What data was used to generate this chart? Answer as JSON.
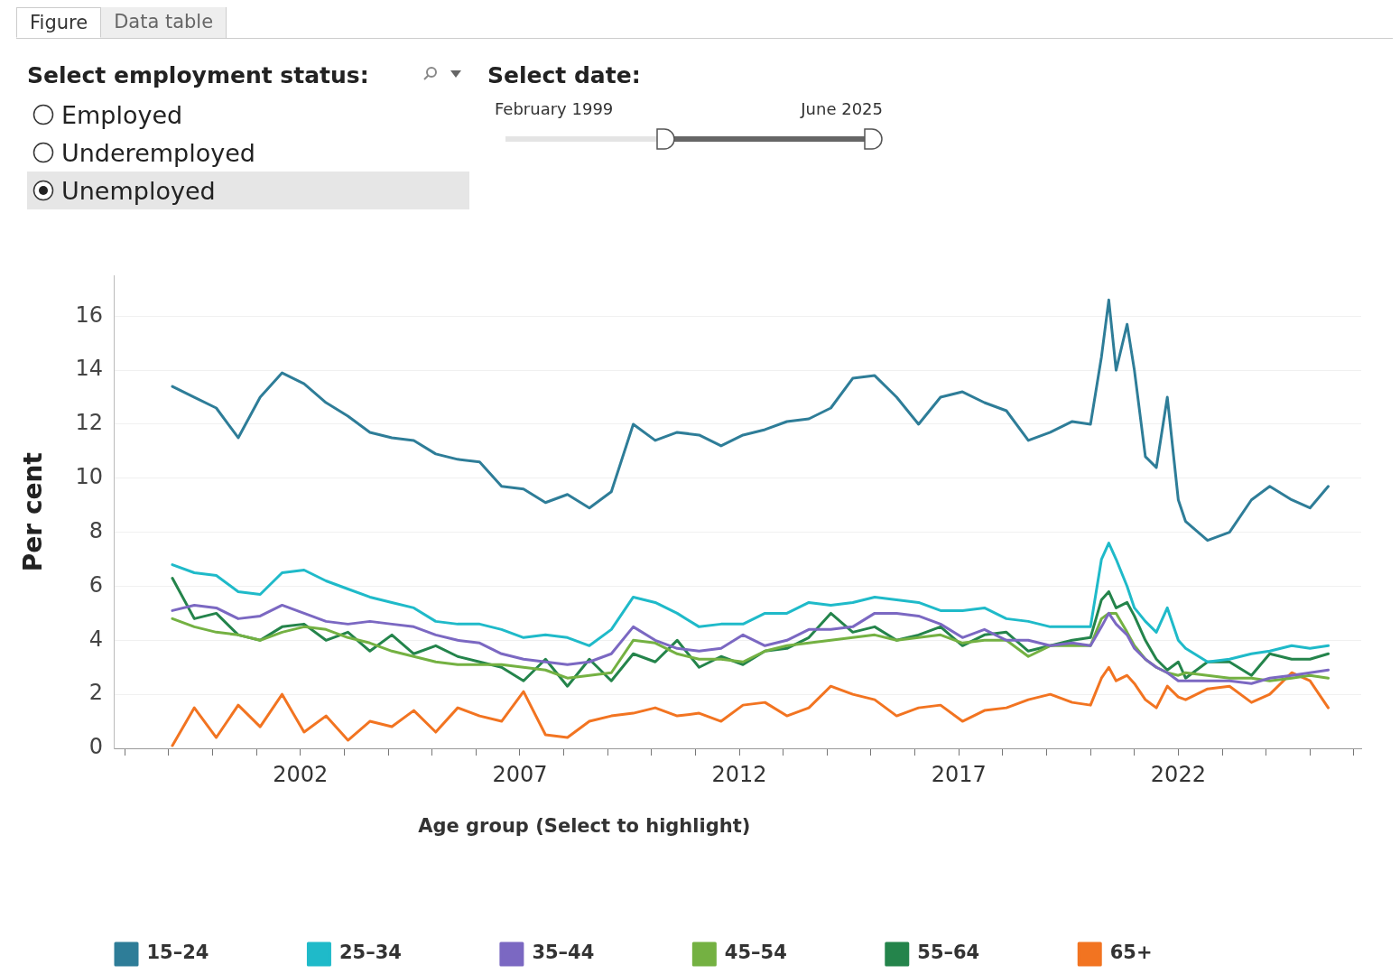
{
  "chart_data": {
    "type": "line",
    "ylabel": "Per cent",
    "legend_title": "Age group (Select to highlight)",
    "legend": "bottom",
    "grid": "y",
    "marker": "none",
    "line_style": "solid",
    "annotations": [
      "Figure",
      "Data table",
      "Select employment status:",
      "Employed",
      "Underemployed",
      "Unemployed",
      "Select date:",
      "February 1999",
      "June 2025"
    ],
    "xlim": [
      "1997-10",
      "2026-03"
    ],
    "ylim": [
      0,
      17.5
    ],
    "yticks": [
      0,
      2,
      4,
      6,
      8,
      10,
      12,
      14,
      16
    ],
    "xticks": [
      {
        "value": "1998",
        "label": null
      },
      {
        "value": "1999",
        "label": null
      },
      {
        "value": "2000",
        "label": null
      },
      {
        "value": "2001",
        "label": null
      },
      {
        "value": "2002",
        "label": "2002"
      },
      {
        "value": "2003",
        "label": null
      },
      {
        "value": "2004",
        "label": null
      },
      {
        "value": "2005",
        "label": null
      },
      {
        "value": "2006",
        "label": null
      },
      {
        "value": "2007",
        "label": "2007"
      },
      {
        "value": "2008",
        "label": null
      },
      {
        "value": "2009",
        "label": null
      },
      {
        "value": "2010",
        "label": null
      },
      {
        "value": "2011",
        "label": null
      },
      {
        "value": "2012",
        "label": "2012"
      },
      {
        "value": "2013",
        "label": null
      },
      {
        "value": "2014",
        "label": null
      },
      {
        "value": "2015",
        "label": null
      },
      {
        "value": "2016",
        "label": null
      },
      {
        "value": "2017",
        "label": "2017"
      },
      {
        "value": "2018",
        "label": null
      },
      {
        "value": "2019",
        "label": null
      },
      {
        "value": "2020",
        "label": null
      },
      {
        "value": "2021",
        "label": null
      },
      {
        "value": "2022",
        "label": "2022"
      },
      {
        "value": "2023",
        "label": null
      },
      {
        "value": "2024",
        "label": null
      },
      {
        "value": "2025",
        "label": null
      },
      {
        "value": "2026",
        "label": null
      }
    ],
    "x": [
      "1999-02",
      "1999-08",
      "2000-02",
      "2000-08",
      "2001-02",
      "2001-08",
      "2002-02",
      "2002-08",
      "2003-02",
      "2003-08",
      "2004-02",
      "2004-08",
      "2005-02",
      "2005-08",
      "2006-02",
      "2006-08",
      "2007-02",
      "2007-08",
      "2008-02",
      "2008-08",
      "2009-02",
      "2009-08",
      "2010-02",
      "2010-08",
      "2011-02",
      "2011-08",
      "2012-02",
      "2012-08",
      "2013-02",
      "2013-08",
      "2014-02",
      "2014-08",
      "2015-02",
      "2015-08",
      "2016-02",
      "2016-08",
      "2017-02",
      "2017-08",
      "2018-02",
      "2018-08",
      "2019-02",
      "2019-08",
      "2020-01",
      "2020-04",
      "2020-06",
      "2020-08",
      "2020-11",
      "2021-01",
      "2021-04",
      "2021-07",
      "2021-10",
      "2022-01",
      "2022-03",
      "2022-09",
      "2023-03",
      "2023-09",
      "2024-02",
      "2024-08",
      "2025-01",
      "2025-06"
    ],
    "series": [
      {
        "name": "15–24",
        "color": "#2e7d98",
        "values": [
          13.4,
          13.0,
          12.6,
          11.5,
          13.0,
          13.9,
          13.5,
          12.8,
          12.3,
          11.7,
          11.5,
          11.4,
          10.9,
          10.7,
          10.6,
          9.7,
          9.6,
          9.1,
          9.4,
          8.9,
          9.5,
          12.0,
          11.4,
          11.7,
          11.6,
          11.2,
          11.6,
          11.8,
          12.1,
          12.2,
          12.6,
          13.7,
          13.8,
          13.0,
          12.0,
          13.0,
          13.2,
          12.8,
          12.5,
          11.4,
          11.7,
          12.1,
          12.0,
          14.5,
          16.6,
          14.0,
          15.7,
          14.0,
          10.8,
          10.4,
          13.0,
          9.2,
          8.4,
          7.7,
          8.0,
          9.2,
          9.7,
          9.2,
          8.9,
          9.7
        ]
      },
      {
        "name": "25–34",
        "color": "#1fbac9",
        "values": [
          6.8,
          6.5,
          6.4,
          5.8,
          5.7,
          6.5,
          6.6,
          6.2,
          5.9,
          5.6,
          5.4,
          5.2,
          4.7,
          4.6,
          4.6,
          4.4,
          4.1,
          4.2,
          4.1,
          3.8,
          4.4,
          5.6,
          5.4,
          5.0,
          4.5,
          4.6,
          4.6,
          5.0,
          5.0,
          5.4,
          5.3,
          5.4,
          5.6,
          5.5,
          5.4,
          5.1,
          5.1,
          5.2,
          4.8,
          4.7,
          4.5,
          4.5,
          4.5,
          7.0,
          7.6,
          7.0,
          6.0,
          5.2,
          4.7,
          4.3,
          5.2,
          4.0,
          3.7,
          3.2,
          3.3,
          3.5,
          3.6,
          3.8,
          3.7,
          3.8
        ]
      },
      {
        "name": "35–44",
        "color": "#7b68c2",
        "values": [
          5.1,
          5.3,
          5.2,
          4.8,
          4.9,
          5.3,
          5.0,
          4.7,
          4.6,
          4.7,
          4.6,
          4.5,
          4.2,
          4.0,
          3.9,
          3.5,
          3.3,
          3.2,
          3.1,
          3.2,
          3.5,
          4.5,
          4.0,
          3.7,
          3.6,
          3.7,
          4.2,
          3.8,
          4.0,
          4.4,
          4.4,
          4.5,
          5.0,
          5.0,
          4.9,
          4.6,
          4.1,
          4.4,
          4.0,
          4.0,
          3.8,
          3.9,
          3.8,
          4.5,
          5.0,
          4.6,
          4.2,
          3.7,
          3.3,
          3.0,
          2.8,
          2.5,
          2.5,
          2.5,
          2.5,
          2.4,
          2.6,
          2.7,
          2.8,
          2.9
        ]
      },
      {
        "name": "45–54",
        "color": "#74b142",
        "values": [
          4.8,
          4.5,
          4.3,
          4.2,
          4.0,
          4.3,
          4.5,
          4.4,
          4.1,
          3.9,
          3.6,
          3.4,
          3.2,
          3.1,
          3.1,
          3.1,
          3.0,
          2.9,
          2.6,
          2.7,
          2.8,
          4.0,
          3.9,
          3.5,
          3.3,
          3.3,
          3.2,
          3.6,
          3.8,
          3.9,
          4.0,
          4.1,
          4.2,
          4.0,
          4.1,
          4.2,
          3.9,
          4.0,
          4.0,
          3.4,
          3.8,
          3.8,
          3.8,
          4.8,
          5.0,
          5.0,
          4.3,
          3.8,
          3.3,
          3.0,
          2.8,
          2.7,
          2.8,
          2.7,
          2.6,
          2.6,
          2.5,
          2.6,
          2.7,
          2.6
        ]
      },
      {
        "name": "55–64",
        "color": "#24844b",
        "values": [
          6.3,
          4.8,
          5.0,
          4.2,
          4.0,
          4.5,
          4.6,
          4.0,
          4.3,
          3.6,
          4.2,
          3.5,
          3.8,
          3.4,
          3.2,
          3.0,
          2.5,
          3.3,
          2.3,
          3.3,
          2.5,
          3.5,
          3.2,
          4.0,
          3.0,
          3.4,
          3.1,
          3.6,
          3.7,
          4.1,
          5.0,
          4.3,
          4.5,
          4.0,
          4.2,
          4.5,
          3.8,
          4.2,
          4.3,
          3.6,
          3.8,
          4.0,
          4.1,
          5.5,
          5.8,
          5.2,
          5.4,
          4.9,
          4.0,
          3.3,
          2.9,
          3.2,
          2.6,
          3.2,
          3.2,
          2.7,
          3.5,
          3.3,
          3.3,
          3.5
        ]
      },
      {
        "name": "65+",
        "color": "#f27421",
        "values": [
          0.1,
          1.5,
          0.4,
          1.6,
          0.8,
          2.0,
          0.6,
          1.2,
          0.3,
          1.0,
          0.8,
          1.4,
          0.6,
          1.5,
          1.2,
          1.0,
          2.1,
          0.5,
          0.4,
          1.0,
          1.2,
          1.3,
          1.5,
          1.2,
          1.3,
          1.0,
          1.6,
          1.7,
          1.2,
          1.5,
          2.3,
          2.0,
          1.8,
          1.2,
          1.5,
          1.6,
          1.0,
          1.4,
          1.5,
          1.8,
          2.0,
          1.7,
          1.6,
          2.6,
          3.0,
          2.5,
          2.7,
          2.4,
          1.8,
          1.5,
          2.3,
          1.9,
          1.8,
          2.2,
          2.3,
          1.7,
          2.0,
          2.8,
          2.5,
          1.5
        ]
      }
    ]
  }
}
